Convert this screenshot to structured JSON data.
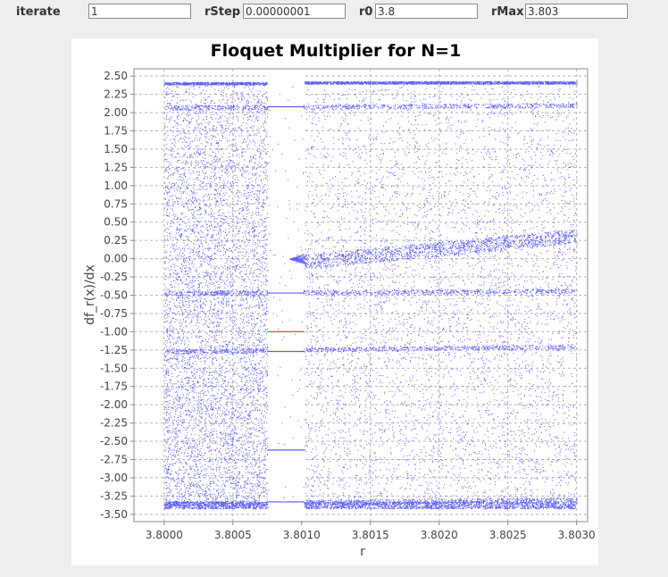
{
  "controls": {
    "iterate": {
      "label": "iterate",
      "value": "1"
    },
    "rStep": {
      "label": "rStep",
      "value": "0.00000001"
    },
    "r0": {
      "label": "r0",
      "value": "3.8"
    },
    "rMax": {
      "label": "rMax",
      "value": "3.803"
    }
  },
  "chart_data": {
    "type": "scatter",
    "title": "Floquet Multiplier for N=1",
    "xlabel": "r",
    "ylabel": "df_r(x)/dx",
    "xlim": [
      3.79978,
      3.80308
    ],
    "ylim": [
      -3.6,
      2.6
    ],
    "grid": true,
    "legend": "none",
    "x_ticks": [
      "3.8000",
      "3.8005",
      "3.8010",
      "3.8015",
      "3.8020",
      "3.8025",
      "3.8030"
    ],
    "y_ticks": [
      "2.50",
      "2.25",
      "2.00",
      "1.75",
      "1.50",
      "1.25",
      "1.00",
      "0.75",
      "0.50",
      "0.25",
      "0.00",
      "-0.25",
      "-0.50",
      "-0.75",
      "-1.00",
      "-1.25",
      "-1.50",
      "-1.75",
      "-2.00",
      "-2.25",
      "-2.50",
      "-2.75",
      "-3.00",
      "-3.25",
      "-3.50"
    ],
    "series_color": "#5a5aff",
    "highlight_color": "#ff4040",
    "chaotic_bands": [
      {
        "x_range": [
          3.8,
          3.80075
        ],
        "y_range": [
          -3.42,
          2.42
        ]
      },
      {
        "x_range": [
          3.80102,
          3.803
        ],
        "y_range": [
          -3.42,
          2.43
        ]
      }
    ],
    "periodic_window": {
      "x_range": [
        3.80075,
        3.80102
      ],
      "multiplier_lines": [
        {
          "y": 2.08,
          "color": "#5a5aff"
        },
        {
          "y": -0.47,
          "color": "#5a5aff"
        },
        {
          "y": -1.0,
          "color": "#ff4040"
        },
        {
          "y": -1.27,
          "color": "#5a5aff"
        },
        {
          "y": -2.62,
          "color": "#5a5aff"
        },
        {
          "y": -3.33,
          "color": "#5a5aff"
        }
      ]
    },
    "dense_curves": [
      {
        "y_at_start": 2.07,
        "y_at_end": 2.1
      },
      {
        "y_at_start": -0.47,
        "y_at_end": -0.44
      },
      {
        "y_at_start": -1.27,
        "y_at_end": -1.2
      },
      {
        "y_at_start": -3.35,
        "y_at_end": -3.3
      }
    ]
  }
}
